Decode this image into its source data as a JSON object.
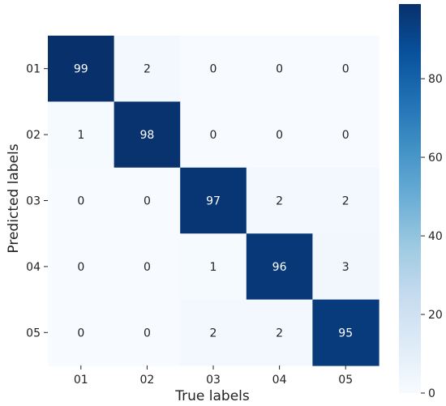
{
  "chart_data": {
    "type": "heatmap",
    "xlabel": "True labels",
    "ylabel": "Predicted labels",
    "x_categories": [
      "01",
      "02",
      "03",
      "04",
      "05"
    ],
    "y_categories": [
      "01",
      "02",
      "03",
      "04",
      "05"
    ],
    "values": [
      [
        99,
        2,
        0,
        0,
        0
      ],
      [
        1,
        98,
        0,
        0,
        0
      ],
      [
        0,
        0,
        97,
        2,
        2
      ],
      [
        0,
        0,
        1,
        96,
        3
      ],
      [
        0,
        0,
        2,
        2,
        95
      ]
    ],
    "colorbar": {
      "colormap": "Blues",
      "range": [
        0,
        99
      ],
      "ticks": [
        0,
        20,
        40,
        60,
        80
      ]
    },
    "colors": {
      "low": "#f7fbff",
      "high": "#08306b",
      "text_light": "#ffffff",
      "text_dark": "#222222"
    }
  }
}
